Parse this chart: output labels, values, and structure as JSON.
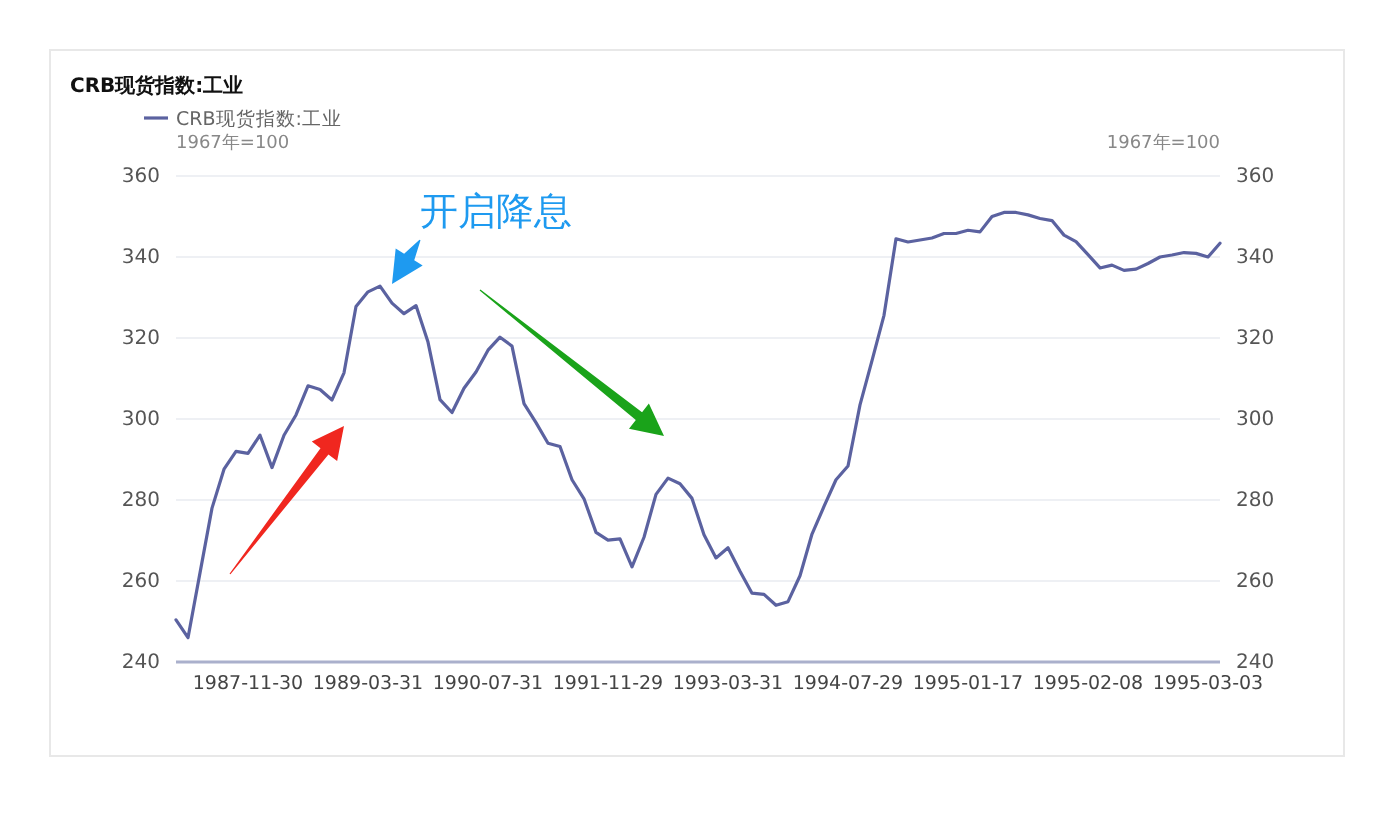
{
  "chart_data": {
    "type": "line",
    "title": "CRB现货指数:工业",
    "ylabel": "1967年=100",
    "y2label": "1967年=100",
    "annotations": [
      "开启降息"
    ],
    "categories": [
      null,
      null,
      null,
      null,
      null,
      null,
      "1987-11-30",
      null,
      null,
      null,
      null,
      null,
      null,
      null,
      null,
      null,
      "1989-03-31",
      null,
      null,
      null,
      null,
      null,
      null,
      null,
      null,
      null,
      "1990-07-31",
      null,
      null,
      null,
      null,
      null,
      null,
      null,
      null,
      null,
      "1991-11-29",
      null,
      null,
      null,
      null,
      null,
      null,
      null,
      null,
      null,
      "1993-03-31",
      null,
      null,
      null,
      null,
      null,
      null,
      null,
      null,
      null,
      "1994-07-29",
      null,
      null,
      null,
      null,
      null,
      null,
      null,
      null,
      null,
      "1995-01-17",
      null,
      null,
      null,
      null,
      null,
      null,
      null,
      null,
      null,
      "1995-02-08",
      null,
      null,
      null,
      null,
      null,
      null,
      null,
      null,
      null,
      "1995-03-03",
      null
    ],
    "series": [
      {
        "name": "CRB现货指数:工业",
        "color": "#5b62a0",
        "values": [
          250.4,
          246,
          262,
          278,
          287.6,
          292,
          291.5,
          296,
          288,
          296,
          301,
          308.2,
          307.3,
          304.7,
          311.4,
          327.8,
          331.4,
          332.8,
          328.6,
          326,
          328,
          319,
          304.8,
          301.6,
          307.6,
          311.6,
          317,
          320.2,
          318,
          303.8,
          299.1,
          294,
          293.2,
          285,
          280.3,
          272,
          270.1,
          270.4,
          263.5,
          270.8,
          281.4,
          285.4,
          284,
          280.4,
          271.4,
          265.7,
          268.2,
          262.4,
          257,
          256.7,
          254,
          254.9,
          261.3,
          271.6,
          278.4,
          285,
          288.4,
          303.5,
          314.4,
          325.6,
          344.5,
          343.7,
          344.2,
          344.7,
          345.8,
          345.8,
          346.6,
          346.2,
          350,
          351,
          351,
          350.4,
          349.5,
          349,
          345.4,
          343.8,
          340.6,
          337.3,
          338,
          336.7,
          337,
          338.4,
          340,
          340.5,
          341.1,
          340.9,
          340,
          343.4
        ]
      }
    ],
    "ylim": [
      240,
      360
    ],
    "yticks": [
      240,
      260,
      280,
      300,
      320,
      340,
      360
    ],
    "y2lim": [
      240,
      360
    ],
    "y2ticks": [
      240,
      260,
      280,
      300,
      320,
      340,
      360
    ],
    "grid": "y",
    "legend": "top left",
    "marker": "none",
    "line_style": "solid"
  }
}
